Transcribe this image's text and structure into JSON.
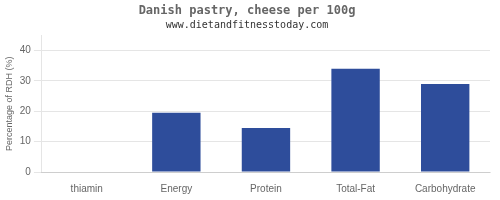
{
  "chart_data": {
    "type": "bar",
    "title": "Danish pastry, cheese per 100g",
    "subtitle": "www.dietandfitnesstoday.com",
    "categories": [
      "thiamin",
      "Energy",
      "Protein",
      "Total-Fat",
      "Carbohydrate"
    ],
    "values": [
      0,
      19.5,
      14.5,
      34,
      29
    ],
    "color": "#2e4d9b",
    "ylabel": "Percentage of RDH (%)",
    "ylim": [
      0,
      45
    ],
    "yticks": [
      0,
      10,
      20,
      30,
      40
    ],
    "grid": true
  }
}
